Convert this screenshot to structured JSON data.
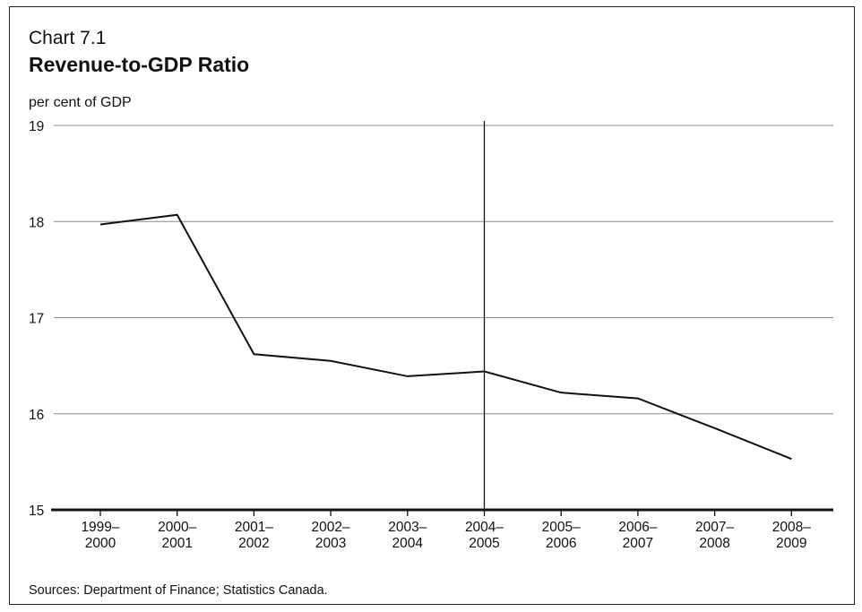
{
  "header": {
    "chart_number": "Chart 7.1",
    "title": "Revenue-to-GDP Ratio",
    "unit_label": "per cent of GDP"
  },
  "footer": {
    "source": "Sources: Department of Finance; Statistics Canada."
  },
  "colors": {
    "line": "#111111",
    "grid": "#8a8a8a",
    "axis": "#111111"
  },
  "chart_data": {
    "type": "line",
    "title": "Revenue-to-GDP Ratio",
    "ylabel": "per cent of GDP",
    "xlabel": "",
    "categories": [
      [
        "1999–",
        "2000"
      ],
      [
        "2000–",
        "2001"
      ],
      [
        "2001–",
        "2002"
      ],
      [
        "2002–",
        "2003"
      ],
      [
        "2003–",
        "2004"
      ],
      [
        "2004–",
        "2005"
      ],
      [
        "2005–",
        "2006"
      ],
      [
        "2006–",
        "2007"
      ],
      [
        "2007–",
        "2008"
      ],
      [
        "2008–",
        "2009"
      ]
    ],
    "values": [
      17.97,
      18.07,
      16.62,
      16.55,
      16.39,
      16.44,
      16.22,
      16.16,
      15.85,
      15.53
    ],
    "ylim": [
      15,
      19
    ],
    "yticks": [
      "15",
      "16",
      "17",
      "18",
      "19"
    ],
    "grid": "horizontal",
    "vertical_marker_category": "2004–2005",
    "legend": "none"
  }
}
